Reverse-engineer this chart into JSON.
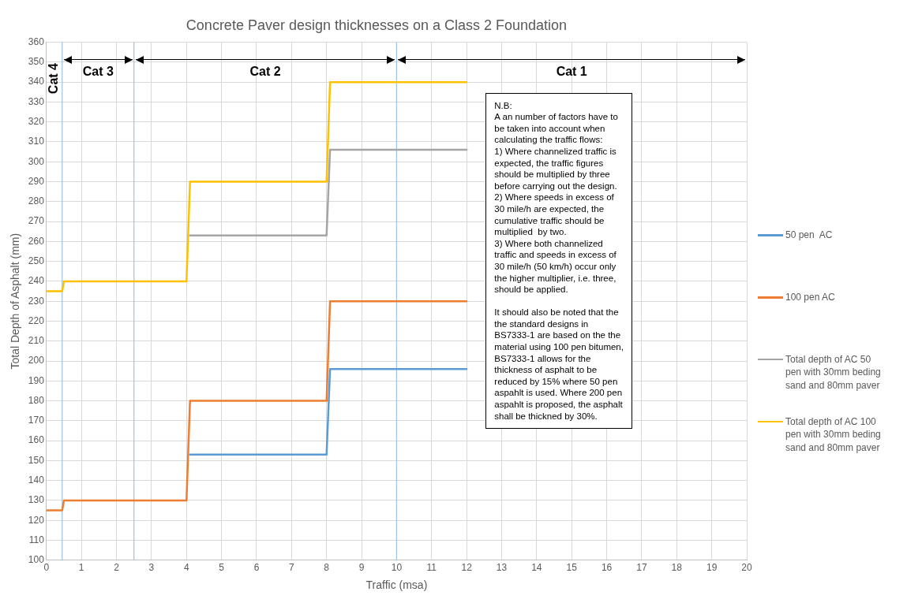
{
  "chart_data": {
    "type": "line",
    "title": "Concrete Paver design thicknesses on a Class 2 Foundation",
    "xlabel": "Traffic (msa)",
    "ylabel": "Total Depth of Asphalt (mm)",
    "xlim": [
      0,
      20
    ],
    "xticks": [
      0,
      1,
      2,
      3,
      4,
      5,
      6,
      7,
      8,
      9,
      10,
      11,
      12,
      13,
      14,
      15,
      16,
      17,
      18,
      19,
      20
    ],
    "ylim": [
      100,
      360
    ],
    "yticks": [
      100,
      110,
      120,
      130,
      140,
      150,
      160,
      170,
      180,
      190,
      200,
      210,
      220,
      230,
      240,
      250,
      260,
      270,
      280,
      290,
      300,
      310,
      320,
      330,
      340,
      350,
      360
    ],
    "grid": true,
    "legend": "right",
    "marker": "none",
    "line_style": "solid",
    "series": [
      {
        "name": "50 pen  AC",
        "color": "#5b9bd5",
        "x": [
          4.1,
          8,
          8.1,
          12
        ],
        "values": [
          153,
          153,
          196,
          196
        ]
      },
      {
        "name": "100 pen AC",
        "color": "#ed7d31",
        "x": [
          0,
          0.45,
          0.5,
          4,
          4.1,
          8,
          8.1,
          12
        ],
        "values": [
          125,
          125,
          130,
          130,
          180,
          180,
          230,
          230
        ]
      },
      {
        "name": "Total depth of AC 50 pen with 30mm beding sand and 80mm paver",
        "color": "#a5a5a5",
        "x": [
          4.1,
          8,
          8.1,
          12
        ],
        "values": [
          263,
          263,
          306,
          306
        ]
      },
      {
        "name": "Total depth of AC 100 pen with 30mm beding sand and 80mm paver",
        "color": "#ffc000",
        "x": [
          0,
          0.45,
          0.5,
          4,
          4.1,
          8,
          8.1,
          12
        ],
        "values": [
          235,
          235,
          240,
          240,
          290,
          290,
          340,
          340
        ]
      }
    ],
    "ref_lines": [
      {
        "axis": "x",
        "value": 0.45,
        "color": "#9dc3e6"
      },
      {
        "axis": "x",
        "value": 2.5,
        "color": "#9dc3e6"
      },
      {
        "axis": "x",
        "value": 10,
        "color": "#9dc3e6"
      }
    ],
    "annotations": [
      "Cat 4",
      "Cat 3",
      "Cat 2",
      "Cat 1",
      "N.B:\nA an number of factors have to be taken into account when calculating the traffic flows:\n1) Where channelized traffic is expected, the traffic figures should be multiplied by three before carrying out the design.\n2) Where speeds in excess of 30 mile/h are expected, the cumulative traffic should be multiplied  by two.\n3) Where both channelized traffic and speeds in excess of 30 mile/h (50 km/h) occur only the higher multiplier, i.e. three, should be applied.\n\nIt should also be noted that the the standard designs in BS7333-1 are based on the the material using 100 pen bitumen, BS7333-1 allows for the thickness of asphalt to be reduced by 15% where 50 pen aspahlt is used. Where 200 pen aspahlt is proposed, the asphalt shall be thickned by 30%."
    ]
  }
}
